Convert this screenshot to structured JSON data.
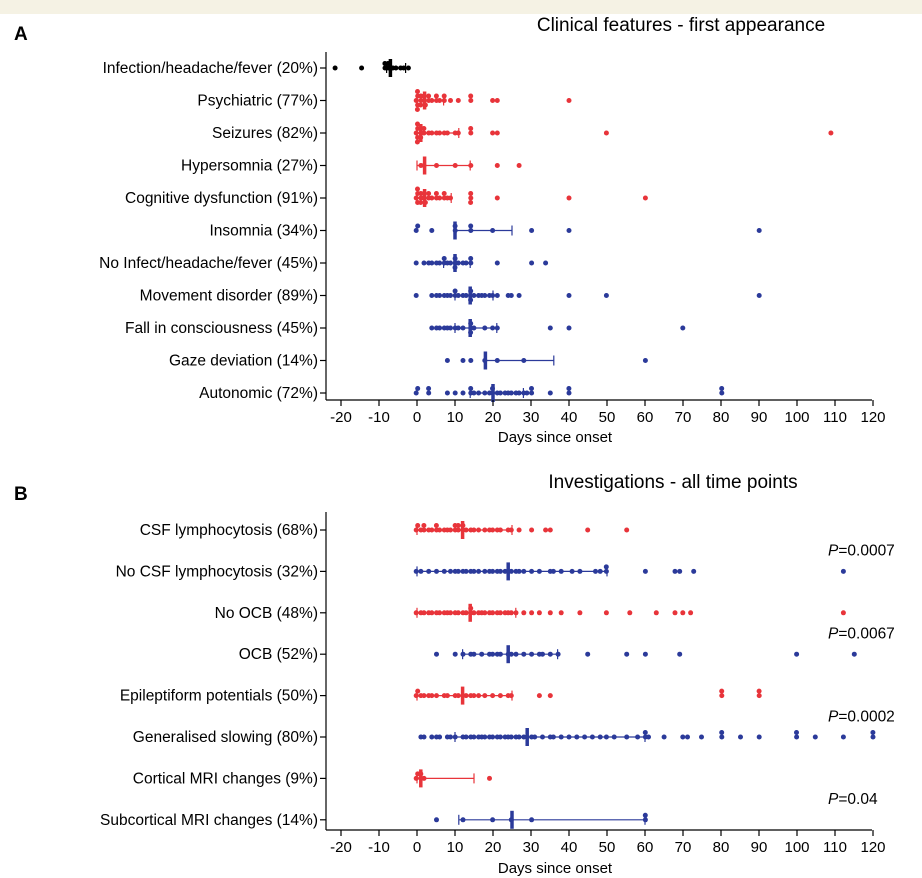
{
  "colors": {
    "black": "#000000",
    "red": "#e8343a",
    "blue": "#2b3a9a",
    "band": "#f5f2e4"
  },
  "chart_data": [
    {
      "panel": "A",
      "type": "scatter",
      "title": "Clinical features - first appearance",
      "xlabel": "Days since onset",
      "xlim": [
        -25,
        120
      ],
      "xticks": [
        -20,
        -10,
        0,
        10,
        20,
        30,
        40,
        50,
        60,
        70,
        80,
        90,
        100,
        110,
        120
      ],
      "grid": false,
      "rows": [
        {
          "label": "Infection/headache/fever (20%)",
          "color": "black",
          "median": -7,
          "low": -8,
          "high": -3,
          "points": [
            -21,
            -14,
            -8,
            -8,
            -7,
            -7,
            -6,
            -5,
            -4,
            -3,
            -2
          ]
        },
        {
          "label": "Psychiatric (77%)",
          "color": "red",
          "median": 2,
          "low": 0,
          "high": 7,
          "points": [
            0,
            0,
            0,
            0,
            0,
            1,
            1,
            1,
            2,
            2,
            2,
            3,
            3,
            4,
            5,
            5,
            6,
            7,
            7,
            9,
            11,
            14,
            14,
            20,
            21,
            40
          ]
        },
        {
          "label": "Seizures (82%)",
          "color": "red",
          "median": 1,
          "low": 0,
          "high": 11,
          "points": [
            0,
            0,
            0,
            0,
            0,
            1,
            1,
            1,
            2,
            2,
            3,
            4,
            5,
            6,
            7,
            8,
            10,
            11,
            14,
            14,
            20,
            21,
            50,
            109
          ]
        },
        {
          "label": "Hypersomnia (27%)",
          "color": "red",
          "median": 2,
          "low": 0,
          "high": 14,
          "points": [
            1,
            2,
            5,
            10,
            14,
            21,
            27
          ]
        },
        {
          "label": "Cognitive dysfunction (91%)",
          "color": "red",
          "median": 2,
          "low": 0,
          "high": 9,
          "points": [
            0,
            0,
            0,
            0,
            1,
            1,
            1,
            2,
            2,
            2,
            3,
            3,
            4,
            5,
            5,
            6,
            7,
            7,
            8,
            9,
            14,
            14,
            14,
            21,
            40,
            60
          ]
        },
        {
          "label": "Insomnia (34%)",
          "color": "blue",
          "median": 10,
          "low": 10,
          "high": 25,
          "points": [
            0,
            0,
            4,
            10,
            10,
            14,
            14,
            20,
            30,
            40,
            90
          ]
        },
        {
          "label": "No Infect/headache/fever (45%)",
          "color": "blue",
          "median": 10,
          "low": 7,
          "high": 14,
          "points": [
            0,
            2,
            3,
            4,
            5,
            6,
            7,
            7,
            8,
            9,
            10,
            10,
            10,
            11,
            12,
            13,
            14,
            14,
            21,
            30,
            34
          ]
        },
        {
          "label": "Movement disorder (89%)",
          "color": "blue",
          "median": 14,
          "low": 10,
          "high": 20,
          "points": [
            0,
            4,
            5,
            6,
            7,
            8,
            9,
            10,
            10,
            11,
            12,
            13,
            14,
            14,
            14,
            15,
            16,
            17,
            18,
            19,
            20,
            21,
            24,
            25,
            27,
            40,
            50,
            90
          ]
        },
        {
          "label": "Fall  in consciousness (45%)",
          "color": "blue",
          "median": 14,
          "low": 10,
          "high": 21,
          "points": [
            4,
            5,
            6,
            7,
            8,
            9,
            10,
            11,
            12,
            14,
            14,
            14,
            15,
            18,
            20,
            21,
            35,
            40,
            70
          ]
        },
        {
          "label": "Gaze deviation (14%)",
          "color": "blue",
          "median": 18,
          "low": 18,
          "high": 36,
          "points": [
            8,
            12,
            14,
            18,
            21,
            28,
            60
          ]
        },
        {
          "label": "Autonomic (72%)",
          "color": "blue",
          "median": 20,
          "low": 14,
          "high": 28,
          "points": [
            0,
            0,
            3,
            3,
            8,
            10,
            12,
            14,
            14,
            15,
            16,
            18,
            19,
            20,
            20,
            21,
            22,
            23,
            24,
            25,
            26,
            27,
            28,
            29,
            30,
            30,
            35,
            40,
            40,
            80,
            80
          ]
        }
      ]
    },
    {
      "panel": "B",
      "type": "scatter",
      "title": "Investigations - all time points",
      "xlabel": "Days since onset",
      "xlim": [
        -25,
        120
      ],
      "xticks": [
        -20,
        -10,
        0,
        10,
        20,
        30,
        40,
        50,
        60,
        70,
        80,
        90,
        100,
        110,
        120
      ],
      "grid": false,
      "rows": [
        {
          "label": "CSF lymphocytosis (68%)",
          "color": "red",
          "median": 12,
          "low": 0,
          "high": 25,
          "points": [
            0,
            0,
            1,
            2,
            2,
            3,
            4,
            5,
            5,
            6,
            7,
            8,
            9,
            10,
            10,
            11,
            11,
            12,
            12,
            13,
            14,
            15,
            16,
            18,
            19,
            20,
            21,
            22,
            24,
            25,
            27,
            30,
            34,
            35,
            45,
            55
          ]
        },
        {
          "label": "No CSF lymphocytosis (32%)",
          "color": "blue",
          "median": 24,
          "low": 0,
          "high": 50,
          "points": [
            0,
            1,
            3,
            5,
            7,
            9,
            10,
            11,
            12,
            13,
            14,
            15,
            16,
            18,
            19,
            20,
            21,
            22,
            23,
            24,
            25,
            26,
            27,
            28,
            30,
            32,
            35,
            36,
            38,
            41,
            43,
            47,
            48,
            50,
            50,
            60,
            68,
            69,
            73,
            112
          ]
        },
        {
          "label": "No OCB (48%)",
          "color": "red",
          "median": 14,
          "low": 0,
          "high": 26,
          "points": [
            0,
            1,
            2,
            3,
            4,
            5,
            6,
            7,
            8,
            9,
            10,
            11,
            12,
            13,
            14,
            14,
            15,
            16,
            17,
            18,
            19,
            20,
            21,
            22,
            23,
            24,
            25,
            26,
            28,
            30,
            32,
            35,
            38,
            43,
            50,
            56,
            63,
            68,
            70,
            72,
            112
          ]
        },
        {
          "label": "OCB (52%)",
          "color": "blue",
          "median": 24,
          "low": 12,
          "high": 37,
          "points": [
            5,
            10,
            12,
            14,
            15,
            17,
            19,
            20,
            21,
            22,
            24,
            25,
            26,
            28,
            30,
            32,
            33,
            35,
            37,
            45,
            55,
            60,
            69,
            100,
            115
          ]
        },
        {
          "label": "Epileptiform potentials (50%)",
          "color": "red",
          "median": 12,
          "low": 0,
          "high": 25,
          "points": [
            0,
            0,
            1,
            2,
            3,
            4,
            5,
            7,
            8,
            10,
            11,
            12,
            13,
            14,
            15,
            16,
            18,
            20,
            22,
            24,
            25,
            32,
            35,
            80,
            80,
            90,
            90
          ]
        },
        {
          "label": "Generalised slowing (80%)",
          "color": "blue",
          "median": 29,
          "low": 10,
          "high": 60,
          "points": [
            1,
            2,
            4,
            5,
            6,
            8,
            9,
            10,
            12,
            13,
            14,
            15,
            16,
            17,
            18,
            19,
            20,
            21,
            22,
            23,
            24,
            25,
            26,
            27,
            28,
            29,
            30,
            31,
            33,
            35,
            36,
            38,
            40,
            42,
            44,
            46,
            48,
            50,
            52,
            55,
            58,
            60,
            60,
            61,
            65,
            70,
            71,
            75,
            80,
            80,
            85,
            90,
            100,
            100,
            105,
            112,
            120,
            120
          ]
        },
        {
          "label": "Cortical MRI changes (9%)",
          "color": "red",
          "median": 1,
          "low": 0,
          "high": 15,
          "points": [
            0,
            0,
            1,
            1,
            2,
            19
          ]
        },
        {
          "label": "Subcortical MRI changes (14%)",
          "color": "blue",
          "median": 25,
          "low": 11,
          "high": 60,
          "points": [
            5,
            12,
            20,
            25,
            30,
            60,
            60
          ]
        }
      ],
      "annotations": [
        {
          "label": "P",
          "value": "=0.0007",
          "between_rows": [
            0,
            1
          ]
        },
        {
          "label": "P",
          "value": "=0.0067",
          "between_rows": [
            2,
            3
          ]
        },
        {
          "label": "P",
          "value": "=0.0002",
          "between_rows": [
            4,
            5
          ]
        },
        {
          "label": "P",
          "value": "=0.04",
          "between_rows": [
            6,
            7
          ]
        }
      ]
    }
  ]
}
